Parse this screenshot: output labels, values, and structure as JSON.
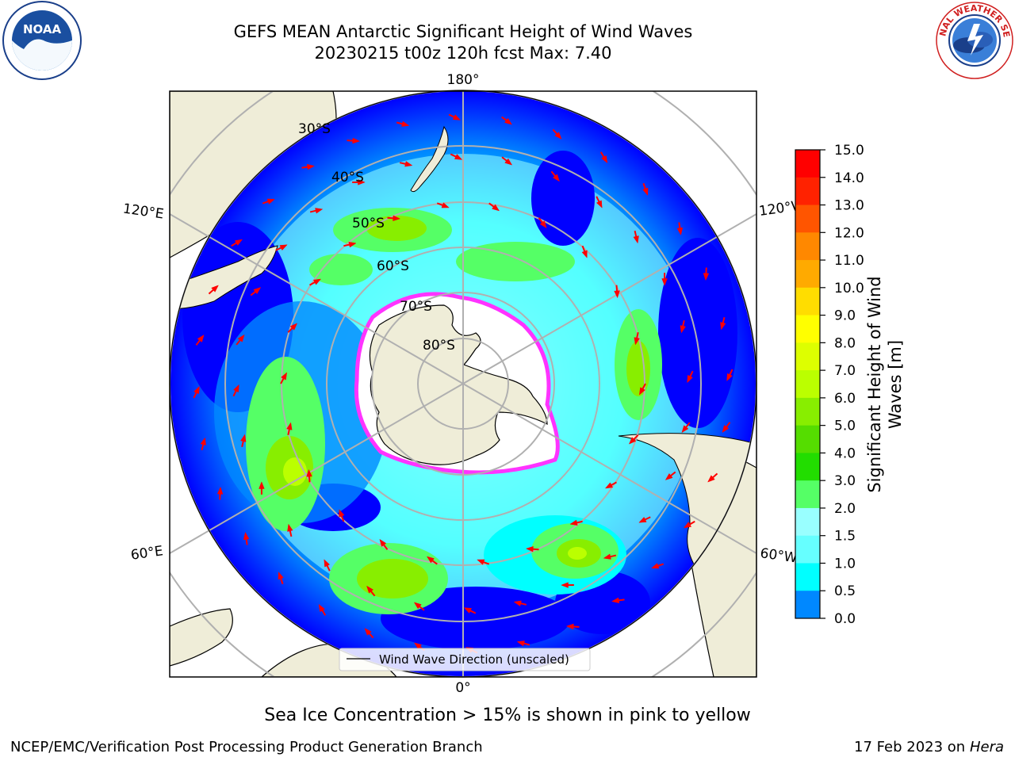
{
  "title_line1": "GEFS MEAN Antarctic Significant Height of Wind Waves",
  "title_line2": "20230215 t00z 120h fcst   Max: 7.40",
  "map": {
    "lon_labels": {
      "top": "180°",
      "bottom": "0°",
      "left_upper": "120°E",
      "left_lower": "60°E",
      "right_upper": "120°W",
      "right_lower": "60°W"
    },
    "lat_labels": [
      "30°S",
      "40°S",
      "50°S",
      "60°S",
      "70°S",
      "80°S"
    ],
    "legend_label": "Wind Wave Direction (unscaled)"
  },
  "colorbar": {
    "label_line1": "Significant Height of Wind",
    "label_line2": "Waves [m]",
    "ticks": [
      "15.0",
      "14.0",
      "13.0",
      "12.0",
      "11.0",
      "10.0",
      "9.0",
      "8.0",
      "7.0",
      "6.0",
      "5.0",
      "4.0",
      "3.0",
      "2.0",
      "1.5",
      "1.0",
      "0.5",
      "0.0"
    ],
    "colors": [
      "#ff0000",
      "#ff2200",
      "#ff5500",
      "#ff8800",
      "#ffaa00",
      "#ffdd00",
      "#ffff00",
      "#ddff00",
      "#bbff00",
      "#88ee00",
      "#55dd00",
      "#22dd00",
      "#55ff66",
      "#99ffff",
      "#66ffff",
      "#00ffff",
      "#0088ff",
      "#0000ff"
    ]
  },
  "note": "Sea Ice Concentration > 15% is shown in pink to yellow",
  "footer_left": "NCEP/EMC/Verification Post Processing Product Generation Branch",
  "footer_date": "17 Feb 2023 on",
  "footer_host": "Hera",
  "logos": {
    "left": "NOAA",
    "right": "NATIONAL WEATHER SERVICE"
  }
}
